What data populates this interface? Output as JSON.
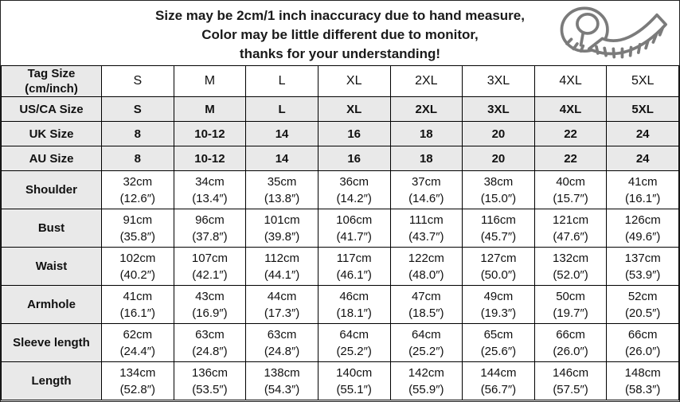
{
  "note": {
    "line1": "Size may be 2cm/1 inch inaccuracy due to hand measure,",
    "line2": "Color may be little different due to monitor,",
    "line3": "thanks for your understanding!"
  },
  "icons": {
    "tape_measure": "tape-measure-icon"
  },
  "colors": {
    "header_cell_bg": "#e9e9e9",
    "data_cell_bg": "#ffffff",
    "border": "#000000",
    "text": "#111111",
    "icon_stroke": "#7b7b7b"
  },
  "table": {
    "columns": [
      "S",
      "M",
      "L",
      "XL",
      "2XL",
      "3XL",
      "4XL",
      "5XL"
    ],
    "rows": [
      {
        "label": "Tag Size (cm/inch)",
        "label_lines": [
          "Tag Size",
          "(cm/inch)"
        ],
        "kind": "size",
        "values": [
          "S",
          "M",
          "L",
          "XL",
          "2XL",
          "3XL",
          "4XL",
          "5XL"
        ]
      },
      {
        "label": "US/CA Size",
        "kind": "size",
        "values": [
          "S",
          "M",
          "L",
          "XL",
          "2XL",
          "3XL",
          "4XL",
          "5XL"
        ]
      },
      {
        "label": "UK Size",
        "kind": "size",
        "values": [
          "8",
          "10-12",
          "14",
          "16",
          "18",
          "20",
          "22",
          "24"
        ]
      },
      {
        "label": "AU Size",
        "kind": "size",
        "values": [
          "8",
          "10-12",
          "14",
          "16",
          "18",
          "20",
          "22",
          "24"
        ]
      },
      {
        "label": "Shoulder",
        "kind": "measure",
        "values": [
          {
            "cm": "32cm",
            "in": "(12.6″)"
          },
          {
            "cm": "34cm",
            "in": "(13.4″)"
          },
          {
            "cm": "35cm",
            "in": "(13.8″)"
          },
          {
            "cm": "36cm",
            "in": "(14.2″)"
          },
          {
            "cm": "37cm",
            "in": "(14.6″)"
          },
          {
            "cm": "38cm",
            "in": "(15.0″)"
          },
          {
            "cm": "40cm",
            "in": "(15.7″)"
          },
          {
            "cm": "41cm",
            "in": "(16.1″)"
          }
        ]
      },
      {
        "label": "Bust",
        "kind": "measure",
        "values": [
          {
            "cm": "91cm",
            "in": "(35.8″)"
          },
          {
            "cm": "96cm",
            "in": "(37.8″)"
          },
          {
            "cm": "101cm",
            "in": "(39.8″)"
          },
          {
            "cm": "106cm",
            "in": "(41.7″)"
          },
          {
            "cm": "111cm",
            "in": "(43.7″)"
          },
          {
            "cm": "116cm",
            "in": "(45.7″)"
          },
          {
            "cm": "121cm",
            "in": "(47.6″)"
          },
          {
            "cm": "126cm",
            "in": "(49.6″)"
          }
        ]
      },
      {
        "label": "Waist",
        "kind": "measure",
        "values": [
          {
            "cm": "102cm",
            "in": "(40.2″)"
          },
          {
            "cm": "107cm",
            "in": "(42.1″)"
          },
          {
            "cm": "112cm",
            "in": "(44.1″)"
          },
          {
            "cm": "117cm",
            "in": "(46.1″)"
          },
          {
            "cm": "122cm",
            "in": "(48.0″)"
          },
          {
            "cm": "127cm",
            "in": "(50.0″)"
          },
          {
            "cm": "132cm",
            "in": "(52.0″)"
          },
          {
            "cm": "137cm",
            "in": "(53.9″)"
          }
        ]
      },
      {
        "label": "Armhole",
        "kind": "measure",
        "values": [
          {
            "cm": "41cm",
            "in": "(16.1″)"
          },
          {
            "cm": "43cm",
            "in": "(16.9″)"
          },
          {
            "cm": "44cm",
            "in": "(17.3″)"
          },
          {
            "cm": "46cm",
            "in": "(18.1″)"
          },
          {
            "cm": "47cm",
            "in": "(18.5″)"
          },
          {
            "cm": "49cm",
            "in": "(19.3″)"
          },
          {
            "cm": "50cm",
            "in": "(19.7″)"
          },
          {
            "cm": "52cm",
            "in": "(20.5″)"
          }
        ]
      },
      {
        "label": "Sleeve length",
        "kind": "measure",
        "values": [
          {
            "cm": "62cm",
            "in": "(24.4″)"
          },
          {
            "cm": "63cm",
            "in": "(24.8″)"
          },
          {
            "cm": "63cm",
            "in": "(24.8″)"
          },
          {
            "cm": "64cm",
            "in": "(25.2″)"
          },
          {
            "cm": "64cm",
            "in": "(25.2″)"
          },
          {
            "cm": "65cm",
            "in": "(25.6″)"
          },
          {
            "cm": "66cm",
            "in": "(26.0″)"
          },
          {
            "cm": "66cm",
            "in": "(26.0″)"
          }
        ]
      },
      {
        "label": "Length",
        "kind": "measure",
        "values": [
          {
            "cm": "134cm",
            "in": "(52.8″)"
          },
          {
            "cm": "136cm",
            "in": "(53.5″)"
          },
          {
            "cm": "138cm",
            "in": "(54.3″)"
          },
          {
            "cm": "140cm",
            "in": "(55.1″)"
          },
          {
            "cm": "142cm",
            "in": "(55.9″)"
          },
          {
            "cm": "144cm",
            "in": "(56.7″)"
          },
          {
            "cm": "146cm",
            "in": "(57.5″)"
          },
          {
            "cm": "148cm",
            "in": "(58.3″)"
          }
        ]
      }
    ]
  }
}
